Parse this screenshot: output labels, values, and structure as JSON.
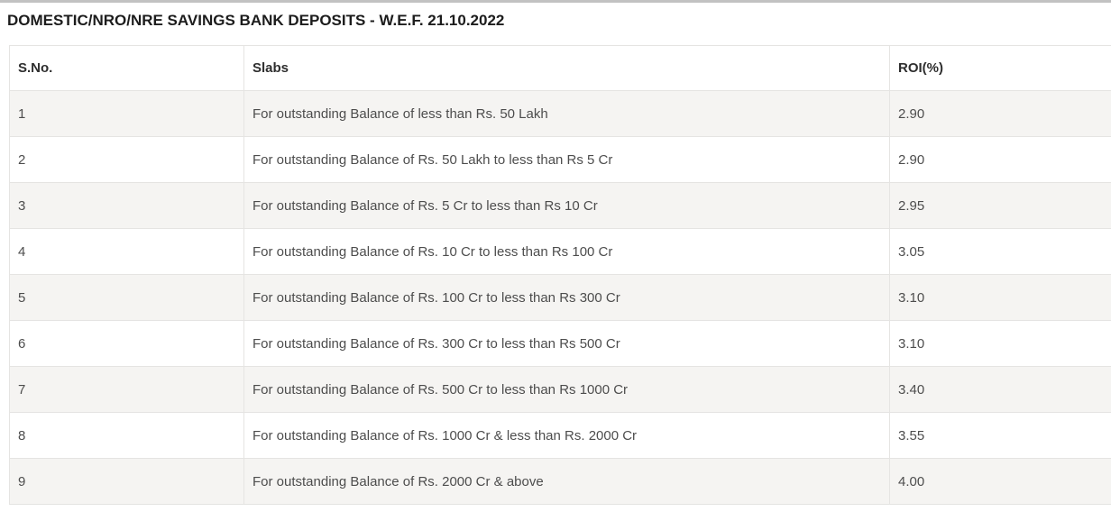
{
  "page": {
    "title": "DOMESTIC/NRO/NRE SAVINGS BANK DEPOSITS - W.E.F. 21.10.2022"
  },
  "table": {
    "columns": [
      {
        "key": "sno",
        "label": "S.No."
      },
      {
        "key": "slab",
        "label": "Slabs"
      },
      {
        "key": "roi",
        "label": "ROI(%)"
      }
    ],
    "rows": [
      {
        "sno": "1",
        "slab": "For outstanding Balance of less than Rs. 50 Lakh",
        "roi": "2.90"
      },
      {
        "sno": "2",
        "slab": "For outstanding Balance of Rs. 50 Lakh to less than Rs 5 Cr",
        "roi": "2.90"
      },
      {
        "sno": "3",
        "slab": "For outstanding Balance of Rs. 5 Cr to less than Rs 10 Cr",
        "roi": "2.95"
      },
      {
        "sno": "4",
        "slab": "For outstanding Balance of Rs. 10 Cr to less than Rs 100 Cr",
        "roi": "3.05"
      },
      {
        "sno": "5",
        "slab": "For outstanding Balance of Rs. 100 Cr to less than Rs 300 Cr",
        "roi": "3.10"
      },
      {
        "sno": "6",
        "slab": "For outstanding Balance of Rs. 300 Cr to less than Rs 500 Cr",
        "roi": "3.10"
      },
      {
        "sno": "7",
        "slab": "For outstanding Balance of Rs. 500 Cr to less than Rs 1000 Cr",
        "roi": "3.40"
      },
      {
        "sno": "8",
        "slab": "For outstanding Balance of Rs. 1000 Cr & less than Rs. 2000 Cr",
        "roi": "3.55"
      },
      {
        "sno": "9",
        "slab": "For outstanding Balance of Rs. 2000 Cr & above",
        "roi": "4.00"
      }
    ]
  },
  "colors": {
    "stripe_row_bg": "#f5f4f2",
    "border": "#e5e4e2",
    "header_text": "#2e2e2e",
    "cell_text": "#4d4d4d",
    "title_text": "#1c1c1c",
    "top_strip": "#c2c2c2"
  }
}
